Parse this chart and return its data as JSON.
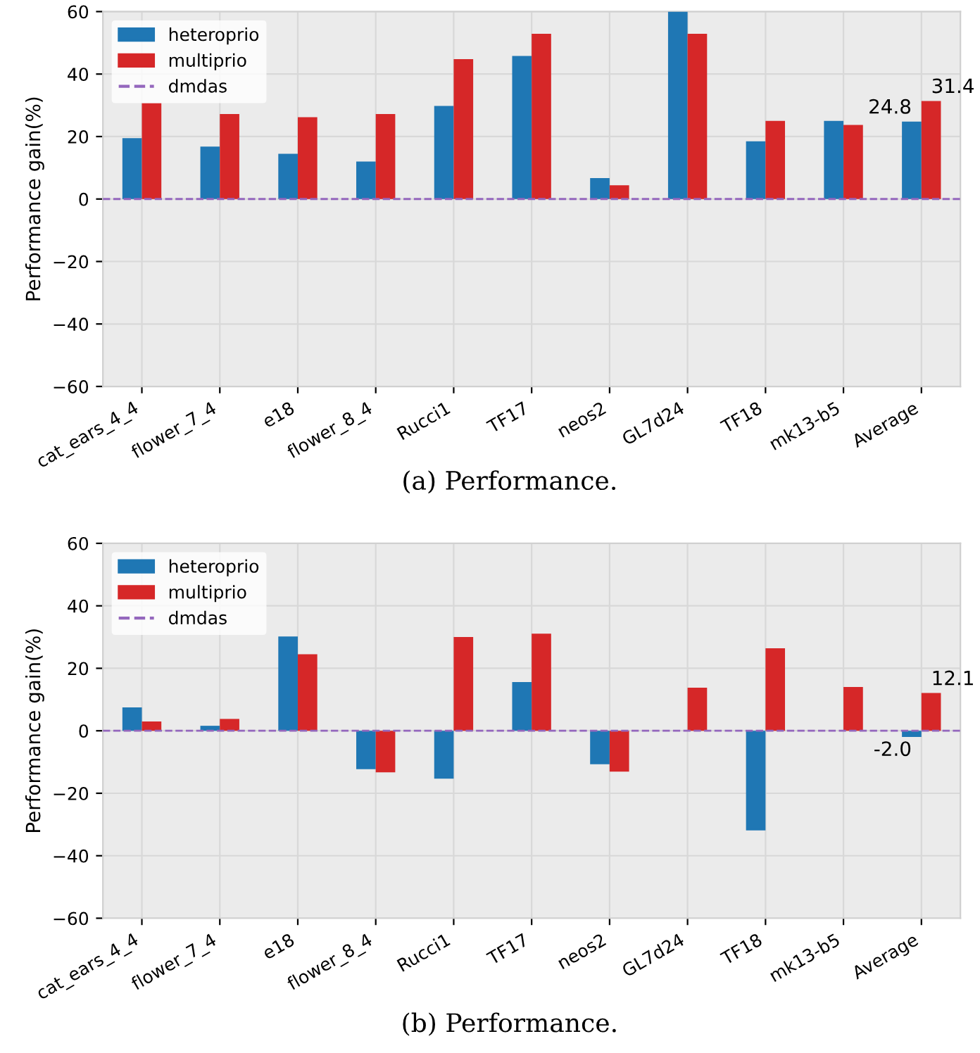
{
  "chart_data": [
    {
      "type": "bar",
      "categories": [
        "cat_ears_4_4",
        "flower_7_4",
        "e18",
        "flower_8_4",
        "Rucci1",
        "TF17",
        "neos2",
        "GL7d24",
        "TF18",
        "mk13-b5",
        "Average"
      ],
      "ylabel": "Performance gain(%)",
      "ylim": [
        -60,
        60
      ],
      "yticks": [
        -60,
        -40,
        -20,
        0,
        20,
        40,
        60
      ],
      "grid": true,
      "legend": "top left",
      "series": [
        {
          "name": "heteroprio",
          "color": "#1f77b4",
          "values": [
            19.5,
            16.8,
            14.5,
            12.0,
            29.8,
            45.8,
            6.7,
            60.0,
            18.5,
            25.0,
            24.8
          ],
          "value_labels": [
            null,
            null,
            null,
            null,
            null,
            null,
            null,
            null,
            null,
            null,
            "24.8"
          ]
        },
        {
          "name": "multiprio",
          "color": "#d62728",
          "values": [
            30.7,
            27.2,
            26.2,
            27.2,
            44.8,
            52.9,
            4.4,
            52.9,
            25.0,
            23.7,
            31.4
          ],
          "value_labels": [
            null,
            null,
            null,
            null,
            null,
            null,
            null,
            null,
            null,
            null,
            "31.4"
          ]
        }
      ],
      "ref_lines": [
        {
          "axis": "y",
          "value": 0,
          "label": "dmdas",
          "color": "#9467bd",
          "line_style": "dashed"
        }
      ],
      "annotations": [
        "(a) Performance."
      ]
    },
    {
      "type": "bar",
      "categories": [
        "cat_ears_4_4",
        "flower_7_4",
        "e18",
        "flower_8_4",
        "Rucci1",
        "TF17",
        "neos2",
        "GL7d24",
        "TF18",
        "mk13-b5",
        "Average"
      ],
      "ylabel": "Performance gain(%)",
      "ylim": [
        -60,
        60
      ],
      "yticks": [
        -60,
        -40,
        -20,
        0,
        20,
        40,
        60
      ],
      "grid": true,
      "legend": "top left",
      "series": [
        {
          "name": "heteroprio",
          "color": "#1f77b4",
          "values": [
            7.5,
            1.6,
            30.2,
            -12.3,
            -15.3,
            15.6,
            -10.7,
            null,
            -31.9,
            null,
            -2.0
          ],
          "value_labels": [
            null,
            null,
            null,
            null,
            null,
            null,
            null,
            null,
            null,
            null,
            "-2.0"
          ]
        },
        {
          "name": "multiprio",
          "color": "#d62728",
          "values": [
            3.0,
            3.8,
            24.5,
            -13.3,
            30.0,
            31.1,
            -13.1,
            13.8,
            26.4,
            14.0,
            12.1
          ],
          "value_labels": [
            null,
            null,
            null,
            null,
            null,
            null,
            null,
            null,
            null,
            null,
            "12.1"
          ]
        }
      ],
      "ref_lines": [
        {
          "axis": "y",
          "value": 0,
          "label": "dmdas",
          "color": "#9467bd",
          "line_style": "dashed"
        }
      ],
      "annotations": [
        "(b) Performance."
      ]
    }
  ]
}
